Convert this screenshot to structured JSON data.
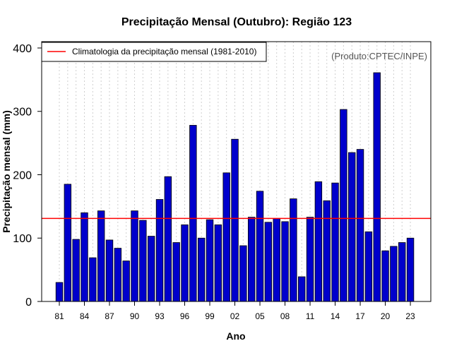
{
  "chart_data": {
    "type": "bar",
    "title": "Precipitação Mensal (Outubro): Região 123",
    "xlabel": "Ano",
    "ylabel": "Precipitação mensal (mm)",
    "ylim": [
      0,
      410
    ],
    "yticks": [
      0,
      100,
      200,
      300,
      400
    ],
    "categories": [
      "81",
      "82",
      "83",
      "84",
      "85",
      "86",
      "87",
      "88",
      "89",
      "90",
      "91",
      "92",
      "93",
      "94",
      "95",
      "96",
      "97",
      "98",
      "99",
      "00",
      "01",
      "02",
      "03",
      "04",
      "05",
      "06",
      "07",
      "08",
      "09",
      "10",
      "11",
      "12",
      "13",
      "14",
      "15",
      "16",
      "17",
      "18",
      "19",
      "20",
      "21",
      "22",
      "23"
    ],
    "xtick_labels": [
      "81",
      "84",
      "87",
      "90",
      "93",
      "96",
      "99",
      "02",
      "05",
      "08",
      "11",
      "14",
      "17",
      "20",
      "23"
    ],
    "values": [
      30,
      185,
      98,
      140,
      69,
      143,
      97,
      84,
      64,
      143,
      128,
      103,
      161,
      197,
      93,
      121,
      278,
      100,
      129,
      121,
      203,
      256,
      88,
      133,
      174,
      125,
      131,
      126,
      162,
      39,
      133,
      189,
      159,
      187,
      303,
      235,
      240,
      110,
      361,
      80,
      87,
      93,
      100
    ],
    "bar_color": "#0000cc",
    "series": [
      {
        "name": "Precipitação mensal",
        "values": [
          30,
          185,
          98,
          140,
          69,
          143,
          97,
          84,
          64,
          143,
          128,
          103,
          161,
          197,
          93,
          121,
          278,
          100,
          129,
          121,
          203,
          256,
          88,
          133,
          174,
          125,
          131,
          126,
          162,
          39,
          133,
          189,
          159,
          187,
          303,
          235,
          240,
          110,
          361,
          80,
          87,
          93,
          100
        ]
      }
    ],
    "reference_line": {
      "label": "Climatologia da precipitação mensal (1981-2010)",
      "value": 131,
      "color": "#ff0000"
    },
    "legend_position": "top-left",
    "grid": "vertical-dotted",
    "annotation": "(Produto:CPTEC/INPE)"
  }
}
